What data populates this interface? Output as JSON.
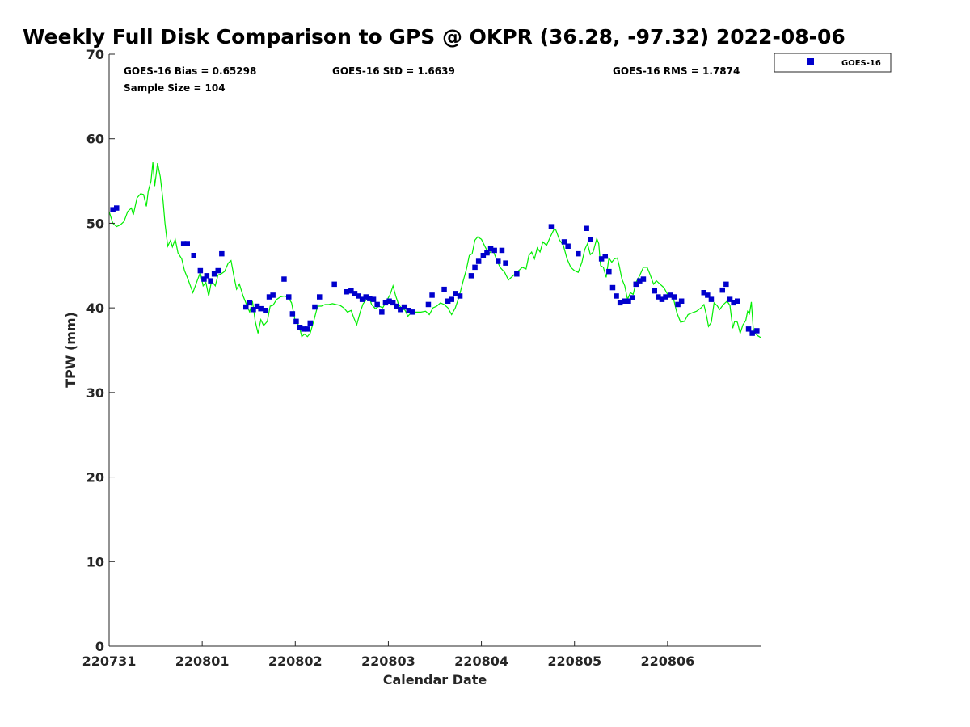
{
  "chart_data": {
    "type": "scatter",
    "title": "Weekly Full Disk Comparison to GPS @ OKPR (36.28, -97.32) 2022-08-06",
    "xlabel": "Calendar Date",
    "ylabel": "TPW (mm)",
    "xlim": [
      0,
      7
    ],
    "ylim": [
      0,
      70
    ],
    "x_ticks": [
      0,
      1,
      2,
      3,
      4,
      5,
      6
    ],
    "x_tick_labels": [
      "220731",
      "220801",
      "220802",
      "220803",
      "220804",
      "220805",
      "220806"
    ],
    "y_ticks": [
      0,
      10,
      20,
      30,
      40,
      50,
      60,
      70
    ],
    "y_tick_labels": [
      "0",
      "10",
      "20",
      "30",
      "40",
      "50",
      "60",
      "70"
    ],
    "legend": {
      "location": "top-right",
      "entries": [
        {
          "label": "GOES-16",
          "color": "#0000cc",
          "marker": "square"
        }
      ]
    },
    "stats": {
      "bias": "GOES-16 Bias = 0.65298",
      "std": "GOES-16 StD = 1.6639",
      "rms": "GOES-16 RMS = 1.7874",
      "sample": "Sample Size = 104"
    },
    "series": [
      {
        "name": "GOES-16",
        "kind": "scatter",
        "color": "#0000cc",
        "points": [
          [
            0.04,
            51.6
          ],
          [
            0.08,
            51.8
          ],
          [
            0.8,
            47.6
          ],
          [
            0.84,
            47.6
          ],
          [
            0.91,
            46.2
          ],
          [
            0.98,
            44.4
          ],
          [
            1.02,
            43.4
          ],
          [
            1.05,
            43.8
          ],
          [
            1.09,
            43.2
          ],
          [
            1.13,
            44.0
          ],
          [
            1.17,
            44.4
          ],
          [
            1.21,
            46.4
          ],
          [
            1.47,
            40.1
          ],
          [
            1.51,
            40.6
          ],
          [
            1.55,
            39.8
          ],
          [
            1.59,
            40.2
          ],
          [
            1.63,
            39.9
          ],
          [
            1.68,
            39.7
          ],
          [
            1.72,
            41.3
          ],
          [
            1.76,
            41.5
          ],
          [
            1.88,
            43.4
          ],
          [
            1.93,
            41.3
          ],
          [
            1.97,
            39.3
          ],
          [
            2.01,
            38.4
          ],
          [
            2.05,
            37.7
          ],
          [
            2.09,
            37.5
          ],
          [
            2.13,
            37.5
          ],
          [
            2.16,
            38.2
          ],
          [
            2.21,
            40.1
          ],
          [
            2.26,
            41.3
          ],
          [
            2.42,
            42.8
          ],
          [
            2.55,
            41.9
          ],
          [
            2.6,
            42.0
          ],
          [
            2.64,
            41.7
          ],
          [
            2.68,
            41.4
          ],
          [
            2.72,
            41.0
          ],
          [
            2.76,
            41.3
          ],
          [
            2.8,
            41.1
          ],
          [
            2.84,
            41.0
          ],
          [
            2.88,
            40.4
          ],
          [
            2.93,
            39.5
          ],
          [
            2.97,
            40.6
          ],
          [
            3.01,
            40.8
          ],
          [
            3.05,
            40.6
          ],
          [
            3.09,
            40.2
          ],
          [
            3.13,
            39.8
          ],
          [
            3.17,
            40.1
          ],
          [
            3.22,
            39.7
          ],
          [
            3.26,
            39.5
          ],
          [
            3.43,
            40.4
          ],
          [
            3.47,
            41.5
          ],
          [
            3.6,
            42.2
          ],
          [
            3.64,
            40.8
          ],
          [
            3.68,
            41.0
          ],
          [
            3.72,
            41.7
          ],
          [
            3.77,
            41.4
          ],
          [
            3.89,
            43.8
          ],
          [
            3.93,
            44.8
          ],
          [
            3.97,
            45.5
          ],
          [
            4.02,
            46.2
          ],
          [
            4.06,
            46.5
          ],
          [
            4.1,
            47.0
          ],
          [
            4.14,
            46.8
          ],
          [
            4.18,
            45.5
          ],
          [
            4.22,
            46.8
          ],
          [
            4.26,
            45.3
          ],
          [
            4.38,
            44.0
          ],
          [
            4.75,
            49.6
          ],
          [
            4.89,
            47.8
          ],
          [
            4.93,
            47.3
          ],
          [
            5.04,
            46.4
          ],
          [
            5.13,
            49.4
          ],
          [
            5.17,
            48.1
          ],
          [
            5.29,
            45.8
          ],
          [
            5.33,
            46.1
          ],
          [
            5.37,
            44.3
          ],
          [
            5.41,
            42.4
          ],
          [
            5.45,
            41.4
          ],
          [
            5.49,
            40.6
          ],
          [
            5.54,
            40.8
          ],
          [
            5.58,
            40.8
          ],
          [
            5.62,
            41.2
          ],
          [
            5.66,
            42.8
          ],
          [
            5.7,
            43.2
          ],
          [
            5.74,
            43.4
          ],
          [
            5.86,
            42.0
          ],
          [
            5.9,
            41.3
          ],
          [
            5.94,
            41.0
          ],
          [
            5.98,
            41.3
          ],
          [
            6.03,
            41.5
          ],
          [
            6.07,
            41.3
          ],
          [
            6.11,
            40.4
          ],
          [
            6.15,
            40.8
          ],
          [
            6.39,
            41.8
          ],
          [
            6.43,
            41.5
          ],
          [
            6.47,
            41.0
          ],
          [
            6.59,
            42.1
          ],
          [
            6.63,
            42.8
          ],
          [
            6.67,
            41.0
          ],
          [
            6.71,
            40.6
          ],
          [
            6.75,
            40.8
          ],
          [
            6.87,
            37.5
          ],
          [
            6.91,
            37.0
          ],
          [
            6.96,
            37.3
          ]
        ]
      },
      {
        "kind": "line",
        "color": "#00ee00",
        "points": [
          [
            0.0,
            51.4
          ],
          [
            0.04,
            50.0
          ],
          [
            0.08,
            49.6
          ],
          [
            0.12,
            49.8
          ],
          [
            0.16,
            50.2
          ],
          [
            0.2,
            51.4
          ],
          [
            0.24,
            51.8
          ],
          [
            0.26,
            51.0
          ],
          [
            0.3,
            53.0
          ],
          [
            0.34,
            53.5
          ],
          [
            0.37,
            53.4
          ],
          [
            0.4,
            52.0
          ],
          [
            0.42,
            53.8
          ],
          [
            0.45,
            55.0
          ],
          [
            0.47,
            57.2
          ],
          [
            0.49,
            54.4
          ],
          [
            0.52,
            57.1
          ],
          [
            0.55,
            55.5
          ],
          [
            0.58,
            52.6
          ],
          [
            0.6,
            50.0
          ],
          [
            0.63,
            47.3
          ],
          [
            0.66,
            48.0
          ],
          [
            0.68,
            47.2
          ],
          [
            0.71,
            48.1
          ],
          [
            0.74,
            46.5
          ],
          [
            0.78,
            45.8
          ],
          [
            0.81,
            44.4
          ],
          [
            0.84,
            43.6
          ],
          [
            0.87,
            42.7
          ],
          [
            0.9,
            41.8
          ],
          [
            0.94,
            43.0
          ],
          [
            0.98,
            44.2
          ],
          [
            1.01,
            42.6
          ],
          [
            1.04,
            43.0
          ],
          [
            1.07,
            41.4
          ],
          [
            1.1,
            43.2
          ],
          [
            1.14,
            42.6
          ],
          [
            1.17,
            43.9
          ],
          [
            1.2,
            44.0
          ],
          [
            1.24,
            44.3
          ],
          [
            1.28,
            45.3
          ],
          [
            1.31,
            45.6
          ],
          [
            1.34,
            43.8
          ],
          [
            1.37,
            42.2
          ],
          [
            1.4,
            42.8
          ],
          [
            1.44,
            41.4
          ],
          [
            1.48,
            40.3
          ],
          [
            1.51,
            39.5
          ],
          [
            1.54,
            40.8
          ],
          [
            1.57,
            38.4
          ],
          [
            1.6,
            37.0
          ],
          [
            1.63,
            38.6
          ],
          [
            1.66,
            37.9
          ],
          [
            1.7,
            38.4
          ],
          [
            1.73,
            40.2
          ],
          [
            1.76,
            40.3
          ],
          [
            1.8,
            41.0
          ],
          [
            1.84,
            41.3
          ],
          [
            1.88,
            41.4
          ],
          [
            1.92,
            41.3
          ],
          [
            1.96,
            40.6
          ],
          [
            2.0,
            38.4
          ],
          [
            2.04,
            37.9
          ],
          [
            2.07,
            36.6
          ],
          [
            2.1,
            36.9
          ],
          [
            2.13,
            36.6
          ],
          [
            2.16,
            37.0
          ],
          [
            2.2,
            38.5
          ],
          [
            2.24,
            40.2
          ],
          [
            2.28,
            40.2
          ],
          [
            2.32,
            40.4
          ],
          [
            2.36,
            40.4
          ],
          [
            2.4,
            40.5
          ],
          [
            2.44,
            40.4
          ],
          [
            2.48,
            40.3
          ],
          [
            2.52,
            40.0
          ],
          [
            2.56,
            39.5
          ],
          [
            2.6,
            39.7
          ],
          [
            2.63,
            38.8
          ],
          [
            2.66,
            38.0
          ],
          [
            2.7,
            39.6
          ],
          [
            2.73,
            40.5
          ],
          [
            2.76,
            40.9
          ],
          [
            2.79,
            41.4
          ],
          [
            2.82,
            40.4
          ],
          [
            2.86,
            39.9
          ],
          [
            2.9,
            40.2
          ],
          [
            2.94,
            40.0
          ],
          [
            2.98,
            40.8
          ],
          [
            3.02,
            41.6
          ],
          [
            3.05,
            42.6
          ],
          [
            3.08,
            41.4
          ],
          [
            3.11,
            40.4
          ],
          [
            3.14,
            40.0
          ],
          [
            3.18,
            39.7
          ],
          [
            3.21,
            39.0
          ],
          [
            3.25,
            39.5
          ],
          [
            3.3,
            39.5
          ],
          [
            3.35,
            39.5
          ],
          [
            3.4,
            39.6
          ],
          [
            3.44,
            39.2
          ],
          [
            3.48,
            40.0
          ],
          [
            3.52,
            40.2
          ],
          [
            3.56,
            40.6
          ],
          [
            3.6,
            40.4
          ],
          [
            3.64,
            40.0
          ],
          [
            3.68,
            39.2
          ],
          [
            3.72,
            40.0
          ],
          [
            3.76,
            41.3
          ],
          [
            3.8,
            43.0
          ],
          [
            3.84,
            44.6
          ],
          [
            3.87,
            46.2
          ],
          [
            3.9,
            46.4
          ],
          [
            3.93,
            48.0
          ],
          [
            3.96,
            48.4
          ],
          [
            4.0,
            48.1
          ],
          [
            4.04,
            47.2
          ],
          [
            4.08,
            46.4
          ],
          [
            4.12,
            46.9
          ],
          [
            4.16,
            45.8
          ],
          [
            4.2,
            44.8
          ],
          [
            4.25,
            44.2
          ],
          [
            4.29,
            43.3
          ],
          [
            4.32,
            43.6
          ],
          [
            4.36,
            44.0
          ],
          [
            4.4,
            44.4
          ],
          [
            4.44,
            44.8
          ],
          [
            4.48,
            44.6
          ],
          [
            4.51,
            46.2
          ],
          [
            4.54,
            46.6
          ],
          [
            4.57,
            45.8
          ],
          [
            4.6,
            47.1
          ],
          [
            4.63,
            46.6
          ],
          [
            4.66,
            47.8
          ],
          [
            4.7,
            47.4
          ],
          [
            4.74,
            48.4
          ],
          [
            4.78,
            49.3
          ],
          [
            4.8,
            49.2
          ],
          [
            4.84,
            48.0
          ],
          [
            4.88,
            47.4
          ],
          [
            4.92,
            45.8
          ],
          [
            4.96,
            44.8
          ],
          [
            5.0,
            44.4
          ],
          [
            5.04,
            44.2
          ],
          [
            5.08,
            45.4
          ],
          [
            5.11,
            46.9
          ],
          [
            5.14,
            47.6
          ],
          [
            5.17,
            46.3
          ],
          [
            5.2,
            46.6
          ],
          [
            5.24,
            48.2
          ],
          [
            5.26,
            47.6
          ],
          [
            5.28,
            45.0
          ],
          [
            5.31,
            44.8
          ],
          [
            5.34,
            43.6
          ],
          [
            5.37,
            45.9
          ],
          [
            5.4,
            45.4
          ],
          [
            5.43,
            45.8
          ],
          [
            5.46,
            45.9
          ],
          [
            5.48,
            45.0
          ],
          [
            5.51,
            43.4
          ],
          [
            5.54,
            42.6
          ],
          [
            5.57,
            41.0
          ],
          [
            5.6,
            41.8
          ],
          [
            5.63,
            41.6
          ],
          [
            5.66,
            43.0
          ],
          [
            5.7,
            43.8
          ],
          [
            5.74,
            44.8
          ],
          [
            5.78,
            44.8
          ],
          [
            5.81,
            44.0
          ],
          [
            5.85,
            42.8
          ],
          [
            5.88,
            43.2
          ],
          [
            5.92,
            42.8
          ],
          [
            5.96,
            42.4
          ],
          [
            6.0,
            41.6
          ],
          [
            6.04,
            41.6
          ],
          [
            6.07,
            40.8
          ],
          [
            6.1,
            39.4
          ],
          [
            6.14,
            38.3
          ],
          [
            6.18,
            38.4
          ],
          [
            6.22,
            39.2
          ],
          [
            6.26,
            39.4
          ],
          [
            6.31,
            39.6
          ],
          [
            6.36,
            40.0
          ],
          [
            6.39,
            40.4
          ],
          [
            6.42,
            39.0
          ],
          [
            6.44,
            37.8
          ],
          [
            6.47,
            38.3
          ],
          [
            6.5,
            40.6
          ],
          [
            6.53,
            40.3
          ],
          [
            6.56,
            39.8
          ],
          [
            6.6,
            40.4
          ],
          [
            6.64,
            40.8
          ],
          [
            6.67,
            40.3
          ],
          [
            6.7,
            37.6
          ],
          [
            6.72,
            38.4
          ],
          [
            6.75,
            38.3
          ],
          [
            6.78,
            37.0
          ],
          [
            6.81,
            38.0
          ],
          [
            6.84,
            38.5
          ],
          [
            6.86,
            39.6
          ],
          [
            6.88,
            39.3
          ],
          [
            6.9,
            40.7
          ],
          [
            6.92,
            37.6
          ],
          [
            6.94,
            37.0
          ],
          [
            6.97,
            36.7
          ],
          [
            7.0,
            36.5
          ]
        ]
      }
    ]
  }
}
